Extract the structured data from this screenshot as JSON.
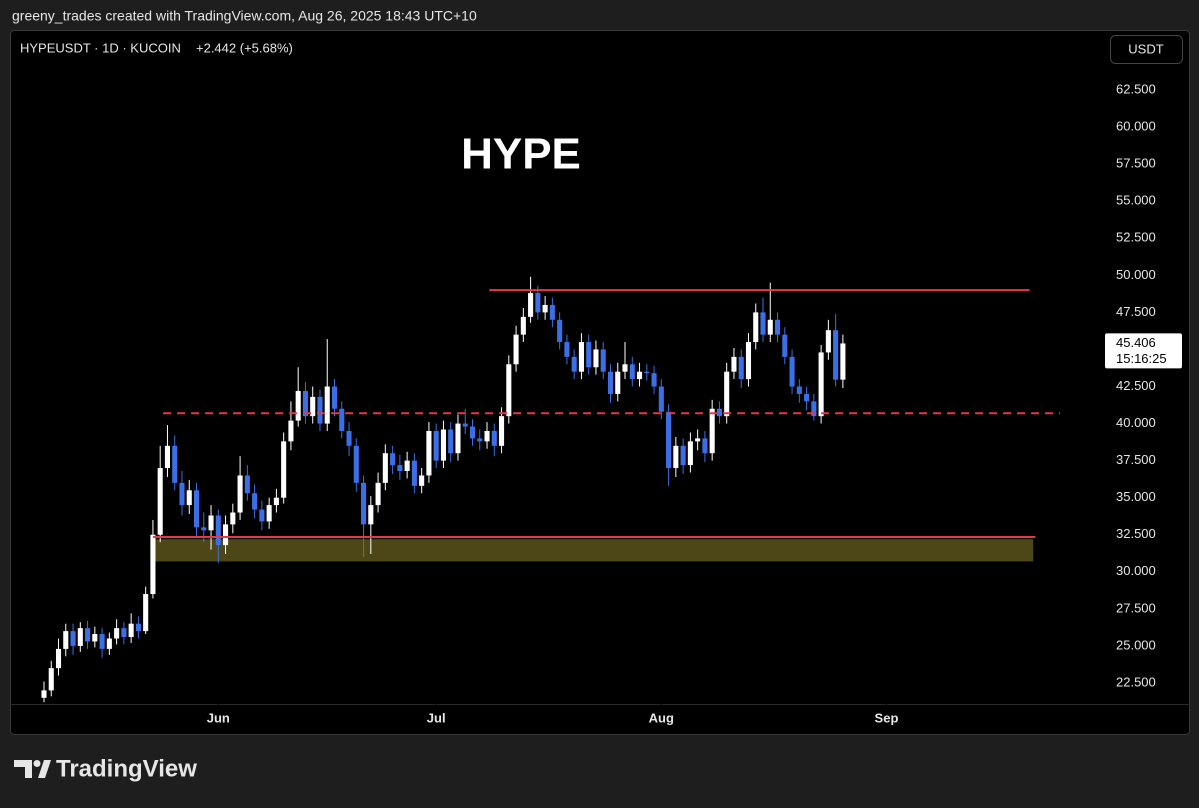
{
  "credit": "greeny_trades created with TradingView.com, Aug 26, 2025 18:43 UTC+10",
  "brand": "TradingView",
  "chart_data": {
    "type": "candlestick",
    "symbol": "HYPEUSDT · 1D · KUCOIN",
    "change": "+2.442 (+5.68%)",
    "currency": "USDT",
    "annotation": "HYPE",
    "countdown": "15:16:25",
    "up_color": "#ffffff",
    "down_color": "#3b6fe6",
    "xlim": [
      -4.68,
      145.4
    ],
    "xticks": [
      {
        "value": 24,
        "label": "Jun"
      },
      {
        "value": 54,
        "label": "Jul"
      },
      {
        "value": 85,
        "label": "Aug"
      },
      {
        "value": 116,
        "label": "Sep"
      }
    ],
    "ylim": [
      21.15,
      66.55
    ],
    "yticks": [
      {
        "value": 22.5,
        "label": "22.500"
      },
      {
        "value": 25,
        "label": "25.000"
      },
      {
        "value": 27.5,
        "label": "27.500"
      },
      {
        "value": 30,
        "label": "30.000"
      },
      {
        "value": 32.5,
        "label": "32.500"
      },
      {
        "value": 35,
        "label": "35.000"
      },
      {
        "value": 37.5,
        "label": "37.500"
      },
      {
        "value": 40,
        "label": "40.000"
      },
      {
        "value": 42.5,
        "label": "42.500"
      },
      {
        "value": 45,
        "label": "45.000"
      },
      {
        "value": 47.5,
        "label": "47.500"
      },
      {
        "value": 50,
        "label": "50.000"
      },
      {
        "value": 52.5,
        "label": "52.500"
      },
      {
        "value": 55,
        "label": "55.000"
      },
      {
        "value": 57.5,
        "label": "57.500"
      },
      {
        "value": 60,
        "label": "60.000"
      },
      {
        "value": 62.5,
        "label": "62.500"
      }
    ],
    "levels": [
      {
        "y": 49.0,
        "x": [
          61.3,
          135.7
        ],
        "style": "solid",
        "color": "#e53945"
      },
      {
        "y": 40.7,
        "x": [
          16.4,
          139.9
        ],
        "style": "dashed",
        "color": "#e53945"
      },
      {
        "y": 32.35,
        "x": [
          15.0,
          136.5
        ],
        "style": "solid",
        "color": "#e53945"
      }
    ],
    "zone": {
      "top": 32.2,
      "bottom": 30.7,
      "x": [
        15.0,
        136.2
      ],
      "color": "#4d4616"
    },
    "open": [
      21.5,
      22.0,
      23.5,
      24.8,
      26.0,
      25.0,
      26.2,
      25.3,
      25.8,
      24.8,
      25.5,
      26.2,
      25.6,
      26.5,
      26.0,
      28.5,
      32.5,
      37.0,
      38.5,
      36.0,
      34.5,
      35.5,
      33.0,
      32.8,
      33.8,
      31.8,
      33.2,
      34.0,
      36.5,
      35.3,
      34.2,
      33.4,
      34.5,
      35.0,
      38.8,
      40.2,
      42.2,
      40.5,
      41.8,
      40.0,
      42.5,
      41.0,
      39.5,
      38.5,
      36.0,
      33.2,
      34.5,
      36.0,
      38.0,
      37.2,
      36.8,
      37.5,
      35.8,
      36.5,
      39.5,
      37.5,
      39.6,
      38.0,
      40.0,
      39.8,
      39.0,
      38.8,
      39.5,
      38.5,
      40.5,
      44.0,
      46.0,
      47.2,
      48.8,
      47.5,
      48.0,
      47.0,
      45.5,
      44.5,
      43.5,
      45.5,
      43.8,
      45.0,
      43.5,
      42.0,
      43.5,
      44.0,
      43.0,
      43.5,
      43.4,
      42.5,
      40.8,
      37.0,
      38.5,
      37.2,
      38.8,
      39.0,
      38.0,
      41.0,
      40.5,
      43.5,
      44.5,
      43.0,
      45.5,
      47.5,
      46.0,
      47.0,
      46.0,
      44.5,
      42.5,
      42.0,
      41.5,
      40.5,
      44.8,
      46.3,
      42.964
    ],
    "high": [
      22.6,
      24.0,
      25.5,
      26.5,
      26.5,
      26.6,
      26.7,
      26.3,
      26.2,
      25.9,
      26.8,
      26.6,
      27.2,
      27.0,
      29.0,
      33.5,
      38.5,
      39.9,
      39.2,
      36.8,
      36.2,
      36.0,
      34.0,
      34.5,
      34.2,
      33.8,
      34.6,
      37.8,
      37.2,
      35.9,
      34.8,
      35.0,
      35.6,
      39.4,
      41.5,
      43.8,
      42.8,
      42.5,
      42.3,
      45.7,
      43.0,
      41.5,
      40.1,
      39.0,
      36.5,
      35.1,
      36.7,
      38.6,
      38.5,
      37.9,
      38.1,
      38.0,
      37.0,
      40.1,
      40.0,
      40.2,
      40.1,
      40.6,
      41.0,
      40.3,
      39.6,
      40.1,
      40.0,
      41.1,
      44.6,
      46.6,
      47.8,
      49.9,
      49.3,
      48.6,
      48.5,
      47.5,
      46.0,
      45.0,
      46.1,
      46.0,
      45.6,
      45.5,
      44.0,
      44.1,
      45.5,
      44.5,
      44.1,
      44.0,
      43.9,
      43.0,
      41.3,
      39.1,
      39.0,
      39.4,
      39.6,
      39.5,
      41.6,
      41.5,
      44.1,
      45.1,
      45.0,
      46.1,
      48.1,
      48.5,
      49.5,
      47.5,
      46.5,
      45.0,
      43.0,
      42.5,
      42.0,
      45.3,
      47.0,
      47.4,
      46.0
    ],
    "low": [
      21.2,
      21.6,
      23.0,
      24.3,
      24.4,
      24.6,
      24.8,
      24.9,
      24.2,
      24.4,
      25.1,
      25.1,
      25.2,
      25.5,
      25.8,
      28.2,
      32.0,
      36.4,
      35.5,
      33.8,
      33.9,
      32.4,
      32.0,
      31.5,
      30.6,
      31.2,
      32.6,
      33.5,
      34.8,
      33.6,
      32.8,
      32.9,
      34.0,
      34.6,
      38.2,
      39.8,
      40.0,
      40.0,
      39.5,
      39.5,
      40.5,
      39.0,
      37.8,
      35.4,
      31.0,
      31.2,
      34.0,
      35.5,
      36.6,
      36.2,
      36.3,
      35.3,
      35.3,
      36.0,
      37.0,
      37.0,
      37.4,
      37.5,
      39.3,
      38.5,
      38.2,
      38.3,
      37.8,
      38.0,
      40.0,
      43.5,
      45.5,
      46.8,
      47.0,
      47.0,
      46.5,
      45.0,
      44.0,
      43.0,
      43.0,
      43.3,
      43.3,
      43.0,
      41.4,
      41.5,
      43.0,
      42.5,
      42.5,
      42.9,
      42.0,
      40.3,
      35.8,
      36.4,
      36.6,
      36.7,
      38.2,
      37.4,
      37.5,
      40.0,
      40.0,
      43.0,
      42.4,
      42.5,
      45.0,
      45.5,
      45.5,
      45.5,
      44.0,
      42.0,
      41.4,
      40.9,
      40.2,
      40.0,
      44.3,
      42.5,
      42.4
    ],
    "close": [
      22.0,
      23.5,
      24.8,
      26.0,
      25.0,
      26.2,
      25.3,
      25.8,
      24.8,
      25.5,
      26.2,
      25.6,
      26.5,
      26.0,
      28.5,
      32.5,
      37.0,
      38.5,
      36.0,
      34.5,
      35.5,
      33.0,
      32.8,
      33.8,
      31.8,
      33.2,
      34.0,
      36.5,
      35.3,
      34.2,
      33.4,
      34.5,
      35.0,
      38.8,
      40.2,
      42.2,
      40.5,
      41.8,
      40.0,
      42.5,
      41.0,
      39.5,
      38.5,
      36.0,
      33.2,
      34.5,
      36.0,
      38.0,
      37.2,
      36.8,
      37.5,
      35.8,
      36.5,
      39.5,
      37.5,
      39.6,
      38.0,
      40.0,
      39.8,
      39.0,
      38.8,
      39.5,
      38.5,
      40.5,
      44.0,
      46.0,
      47.2,
      48.8,
      47.5,
      48.0,
      47.0,
      45.5,
      44.5,
      43.5,
      45.5,
      43.8,
      45.0,
      43.5,
      42.0,
      43.5,
      44.0,
      43.0,
      43.5,
      43.4,
      42.5,
      40.8,
      37.0,
      38.5,
      37.2,
      38.8,
      39.0,
      38.0,
      41.0,
      40.5,
      43.5,
      44.5,
      43.0,
      45.5,
      47.5,
      46.0,
      47.0,
      46.0,
      44.5,
      42.5,
      42.0,
      41.5,
      40.5,
      44.8,
      46.3,
      42.964,
      45.406
    ]
  }
}
